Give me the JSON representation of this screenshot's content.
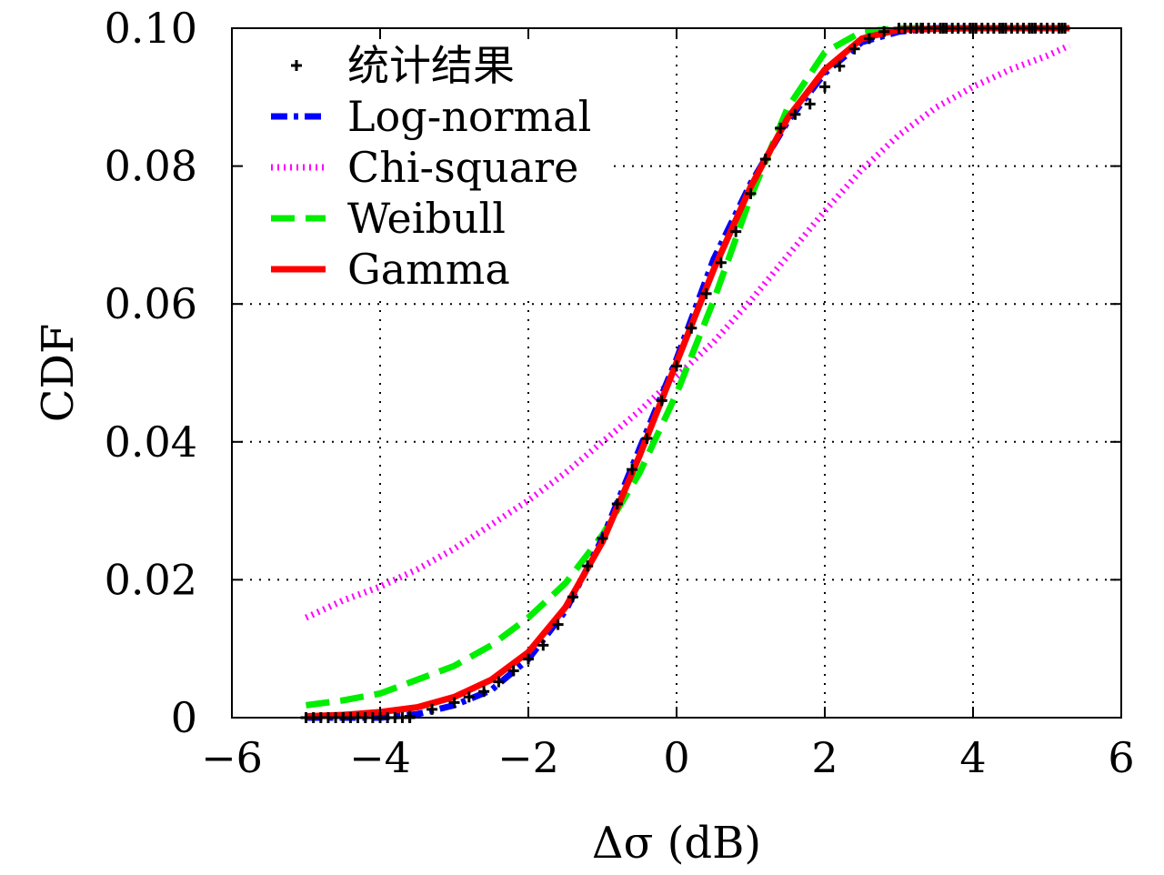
{
  "chart_data": {
    "type": "line",
    "xlabel": "Δσ (dB)",
    "ylabel": "CDF",
    "xlim": [
      -6,
      6
    ],
    "ylim": [
      0,
      0.1
    ],
    "grid": true,
    "legend_position": "top-left",
    "xticks": [
      {
        "value": -6,
        "label": "−6"
      },
      {
        "value": -4,
        "label": "−4"
      },
      {
        "value": -2,
        "label": "−2"
      },
      {
        "value": 0,
        "label": "0"
      },
      {
        "value": 2,
        "label": "2"
      },
      {
        "value": 4,
        "label": "4"
      },
      {
        "value": 6,
        "label": "6"
      }
    ],
    "yticks": [
      {
        "value": 0,
        "label": "0"
      },
      {
        "value": 0.02,
        "label": "0.02"
      },
      {
        "value": 0.04,
        "label": "0.04"
      },
      {
        "value": 0.06,
        "label": "0.06"
      },
      {
        "value": 0.08,
        "label": "0.08"
      },
      {
        "value": 0.1,
        "label": "0.10"
      }
    ],
    "series": [
      {
        "name": "统计结果",
        "style": "points",
        "color": "#000000",
        "x": [
          -5.0,
          -4.5,
          -4.0,
          -3.6,
          -3.3,
          -3.0,
          -2.8,
          -2.6,
          -2.4,
          -2.2,
          -2.0,
          -1.8,
          -1.6,
          -1.4,
          -1.2,
          -1.0,
          -0.8,
          -0.6,
          -0.4,
          -0.2,
          0.0,
          0.2,
          0.4,
          0.6,
          0.8,
          1.0,
          1.2,
          1.4,
          1.6,
          1.8,
          2.0,
          2.2,
          2.4,
          2.6,
          2.8,
          3.0,
          3.3,
          3.6,
          4.0,
          4.4,
          4.8,
          5.2
        ],
        "y": [
          0.0,
          0.0,
          0.0,
          0.0002,
          0.0012,
          0.0022,
          0.003,
          0.0038,
          0.0052,
          0.0068,
          0.0085,
          0.0105,
          0.0135,
          0.0175,
          0.022,
          0.026,
          0.031,
          0.036,
          0.0405,
          0.046,
          0.051,
          0.0565,
          0.0615,
          0.066,
          0.0705,
          0.076,
          0.081,
          0.0855,
          0.0875,
          0.089,
          0.0915,
          0.0945,
          0.097,
          0.0985,
          0.0995,
          0.1,
          0.1,
          0.1,
          0.1,
          0.1,
          0.1,
          0.1
        ]
      },
      {
        "name": "Log-normal",
        "style": "dash-dot",
        "color": "#0000ff",
        "x": [
          -5.0,
          -4.0,
          -3.5,
          -3.0,
          -2.5,
          -2.0,
          -1.5,
          -1.0,
          -0.5,
          0.0,
          0.5,
          1.0,
          1.5,
          2.0,
          2.5,
          3.0,
          3.5,
          4.0,
          5.3
        ],
        "y": [
          0.0,
          0.0,
          0.0005,
          0.0018,
          0.004,
          0.0085,
          0.0155,
          0.026,
          0.039,
          0.052,
          0.0665,
          0.0775,
          0.0865,
          0.0935,
          0.098,
          0.0995,
          0.1,
          0.1,
          0.1
        ]
      },
      {
        "name": "Chi-square",
        "style": "dotted",
        "color": "#ff00ff",
        "x": [
          -5.0,
          -4.5,
          -4.0,
          -3.5,
          -3.0,
          -2.5,
          -2.0,
          -1.5,
          -1.0,
          -0.5,
          0.0,
          0.5,
          1.0,
          1.5,
          2.0,
          2.5,
          3.0,
          3.5,
          4.0,
          4.5,
          5.0,
          5.3
        ],
        "y": [
          0.0145,
          0.017,
          0.019,
          0.0215,
          0.0245,
          0.028,
          0.0315,
          0.0355,
          0.04,
          0.0445,
          0.0495,
          0.0545,
          0.0605,
          0.067,
          0.0735,
          0.0795,
          0.0845,
          0.0885,
          0.0915,
          0.094,
          0.096,
          0.0975
        ]
      },
      {
        "name": "Weibull",
        "style": "dashed",
        "color": "#00ee00",
        "x": [
          -5.0,
          -4.5,
          -4.0,
          -3.5,
          -3.0,
          -2.5,
          -2.0,
          -1.5,
          -1.0,
          -0.5,
          0.0,
          0.5,
          1.0,
          1.5,
          2.0,
          2.5,
          3.0,
          4.0,
          5.3
        ],
        "y": [
          0.0018,
          0.0025,
          0.0035,
          0.0055,
          0.0075,
          0.0105,
          0.0145,
          0.0195,
          0.0265,
          0.0355,
          0.047,
          0.0605,
          0.0755,
          0.0885,
          0.0965,
          0.0995,
          0.1,
          0.1,
          0.1
        ]
      },
      {
        "name": "Gamma",
        "style": "solid",
        "color": "#ff0000",
        "x": [
          -5.0,
          -4.5,
          -4.0,
          -3.5,
          -3.0,
          -2.5,
          -2.0,
          -1.5,
          -1.0,
          -0.5,
          0.0,
          0.5,
          1.0,
          1.5,
          2.0,
          2.5,
          3.0,
          4.0,
          5.3
        ],
        "y": [
          0.0002,
          0.0004,
          0.0008,
          0.0015,
          0.003,
          0.0055,
          0.0095,
          0.016,
          0.0255,
          0.038,
          0.0515,
          0.065,
          0.077,
          0.087,
          0.094,
          0.0985,
          0.0998,
          0.1,
          0.1
        ]
      }
    ]
  }
}
